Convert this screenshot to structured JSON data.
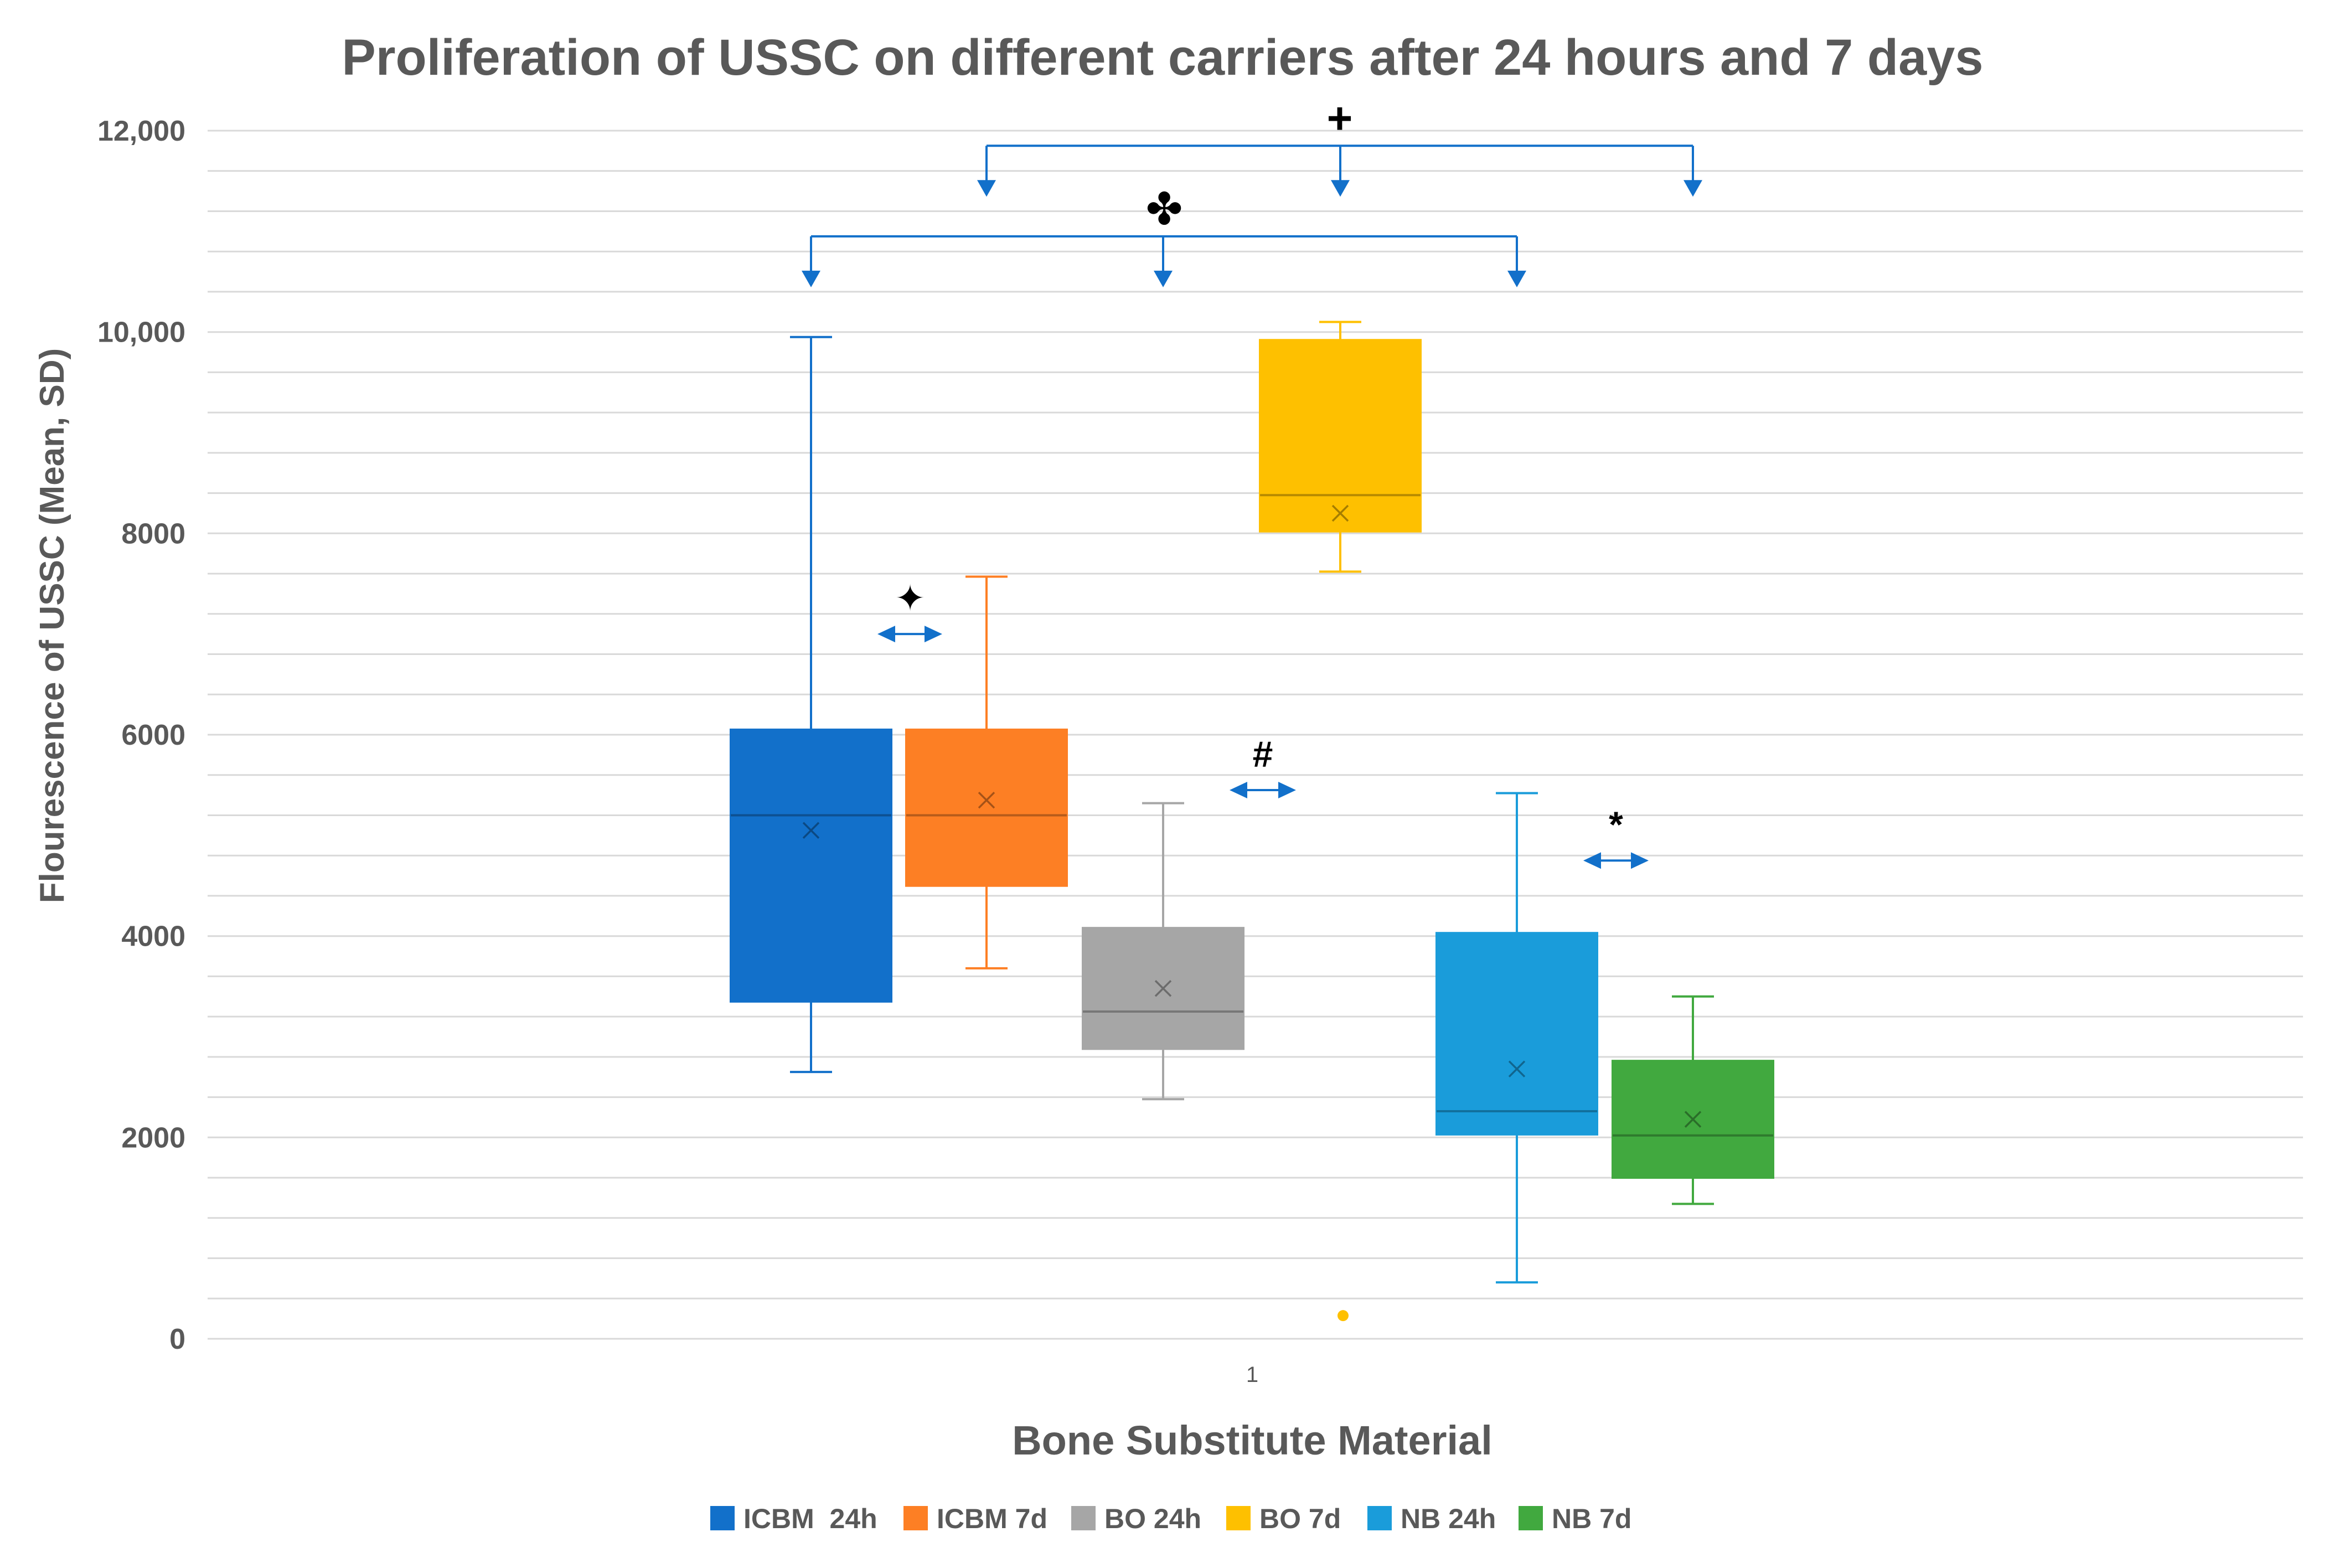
{
  "chart_data": {
    "type": "box",
    "title": "Proliferation of USSC on different carriers after 24 hours and 7 days",
    "xlabel": "Bone Substitute Material",
    "ylabel": "Flourescence of USSC  (Mean, SD)",
    "category_label": "1",
    "ylim": [
      0,
      12000
    ],
    "yticks": [
      {
        "value": 0,
        "label": "0"
      },
      {
        "value": 2000,
        "label": "2000"
      },
      {
        "value": 4000,
        "label": "4000"
      },
      {
        "value": 6000,
        "label": "6000"
      },
      {
        "value": 8000,
        "label": "8000"
      },
      {
        "value": 10000,
        "label": "10,000"
      },
      {
        "value": 12000,
        "label": "12,000"
      }
    ],
    "minor_grid_step": 400,
    "series": [
      {
        "name": "ICBM  24h",
        "color": "#1270CA",
        "min": 2650,
        "q1": 3350,
        "median": 5200,
        "q3": 6050,
        "max": 9950,
        "mean": 5050,
        "outliers": []
      },
      {
        "name": "ICBM 7d",
        "color": "#FD7F24",
        "min": 3680,
        "q1": 4500,
        "median": 5200,
        "q3": 6050,
        "max": 7570,
        "mean": 5350,
        "outliers": []
      },
      {
        "name": "BO 24h",
        "color": "#A6A6A6",
        "min": 2380,
        "q1": 2880,
        "median": 3250,
        "q3": 4080,
        "max": 5320,
        "mean": 3480,
        "outliers": []
      },
      {
        "name": "BO 7d",
        "color": "#FEC000",
        "min": 7620,
        "q1": 8020,
        "median": 8380,
        "q3": 9920,
        "max": 10100,
        "mean": 8200,
        "outliers": [
          230
        ]
      },
      {
        "name": "NB 24h",
        "color": "#1A9CDA",
        "min": 560,
        "q1": 2030,
        "median": 2260,
        "q3": 4030,
        "max": 5420,
        "mean": 2680,
        "outliers": []
      },
      {
        "name": "NB 7d",
        "color": "#41A93F",
        "min": 1340,
        "q1": 1600,
        "median": 2020,
        "q3": 2760,
        "max": 3400,
        "mean": 2180,
        "outliers": []
      }
    ],
    "annotations": [
      {
        "symbol": "✦",
        "type": "double-arrow",
        "between": [
          "ICBM  24h",
          "ICBM 7d"
        ],
        "y": 7000
      },
      {
        "symbol": "#",
        "type": "double-arrow",
        "between": [
          "BO 24h",
          "BO 7d"
        ],
        "y": 5450
      },
      {
        "symbol": "*",
        "type": "double-arrow",
        "between": [
          "NB 24h",
          "NB 7d"
        ],
        "y": 4750
      },
      {
        "symbol": "✤",
        "type": "bracket",
        "targets": [
          "ICBM  24h",
          "BO 24h",
          "NB 24h"
        ],
        "y": 10950
      },
      {
        "symbol": "+",
        "type": "bracket",
        "targets": [
          "ICBM 7d",
          "BO 7d",
          "NB 7d"
        ],
        "y": 11850
      }
    ],
    "legend_position": "bottom"
  }
}
